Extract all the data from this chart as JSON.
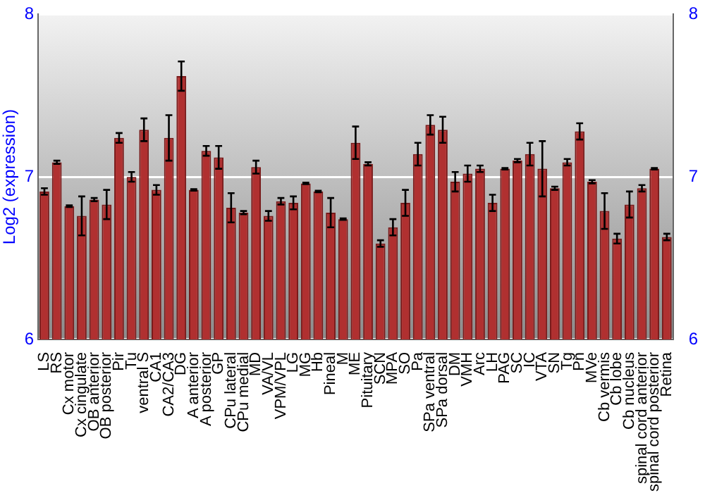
{
  "chart_data": {
    "type": "bar",
    "ylabel": "Log2 (expression)",
    "categories": [
      "LS",
      "RS",
      "Cx motor",
      "Cx cingulate",
      "OB anterior",
      "OB posterior",
      "Pir",
      "Tu",
      "ventral S",
      "CA1",
      "CA2/CA3",
      "DG",
      "A anterior",
      "A posterior",
      "GP",
      "CPu lateral",
      "CPu medial",
      "MD",
      "VA/VL",
      "VPM/VPL",
      "LG",
      "MG",
      "Hb",
      "Pineal",
      "M",
      "ME",
      "Pituitary",
      "SCN",
      "MPA",
      "SO",
      "Pa",
      "SPa ventral",
      "SPa dorsal",
      "DM",
      "VMH",
      "Arc",
      "LH",
      "PAG",
      "SC",
      "IC",
      "VTA",
      "SN",
      "Tg",
      "Pn",
      "MVe",
      "Cb vermis",
      "Cb lobe",
      "Cb nucleus",
      "spinal cord anterior",
      "spinal cord posterior",
      "Retina"
    ],
    "values": [
      6.91,
      7.09,
      6.82,
      6.76,
      6.86,
      6.83,
      7.24,
      7.0,
      7.29,
      6.92,
      7.24,
      7.62,
      6.92,
      7.16,
      7.12,
      6.81,
      6.78,
      7.06,
      6.76,
      6.85,
      6.84,
      6.96,
      6.91,
      6.78,
      6.74,
      7.21,
      7.08,
      6.59,
      6.69,
      6.84,
      7.14,
      7.32,
      7.29,
      6.97,
      7.02,
      7.05,
      6.84,
      7.05,
      7.1,
      7.14,
      7.05,
      6.93,
      7.09,
      7.28,
      6.97,
      6.79,
      6.62,
      6.83,
      6.93,
      7.05,
      6.63
    ],
    "errors": [
      0.02,
      0.01,
      0.005,
      0.12,
      0.01,
      0.09,
      0.03,
      0.03,
      0.07,
      0.03,
      0.14,
      0.09,
      0.005,
      0.03,
      0.07,
      0.09,
      0.01,
      0.04,
      0.03,
      0.02,
      0.04,
      0.005,
      0.005,
      0.09,
      0.005,
      0.1,
      0.01,
      0.02,
      0.05,
      0.08,
      0.07,
      0.06,
      0.08,
      0.06,
      0.05,
      0.02,
      0.05,
      0.005,
      0.01,
      0.07,
      0.17,
      0.01,
      0.02,
      0.05,
      0.01,
      0.11,
      0.03,
      0.08,
      0.02,
      0.005,
      0.02
    ],
    "color": "#b03030",
    "ylim": [
      6,
      8
    ],
    "yticks": [
      6,
      7,
      8
    ],
    "y2lim": [
      6,
      8
    ],
    "y2ticks": [
      6,
      7,
      8
    ],
    "grid": "y"
  }
}
